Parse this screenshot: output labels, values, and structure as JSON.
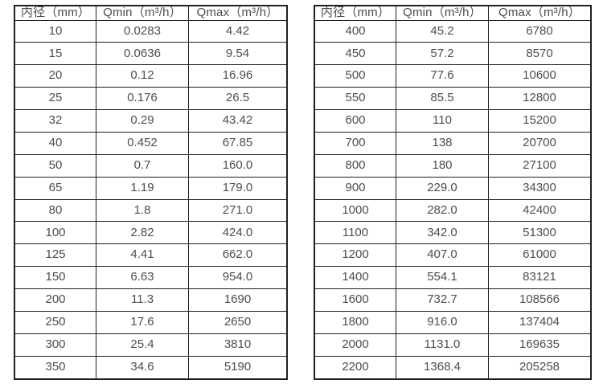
{
  "page": {
    "background_color": "#ffffff",
    "border_color": "#1f1f1f",
    "text_color": "#4d4d4d"
  },
  "chart_data": [
    {
      "type": "table",
      "columns": [
        "内径（mm）",
        "Qmin（m³/h）",
        "Qmax（m³/h）"
      ],
      "rows": [
        [
          "10",
          "0.0283",
          "4.42"
        ],
        [
          "15",
          "0.0636",
          "9.54"
        ],
        [
          "20",
          "0.12",
          "16.96"
        ],
        [
          "25",
          "0.176",
          "26.5"
        ],
        [
          "32",
          "0.29",
          "43.42"
        ],
        [
          "40",
          "0.452",
          "67.85"
        ],
        [
          "50",
          "0.7",
          "160.0"
        ],
        [
          "65",
          "1.19",
          "179.0"
        ],
        [
          "80",
          "1.8",
          "271.0"
        ],
        [
          "100",
          "2.82",
          "424.0"
        ],
        [
          "125",
          "4.41",
          "662.0"
        ],
        [
          "150",
          "6.63",
          "954.0"
        ],
        [
          "200",
          "11.3",
          "1690"
        ],
        [
          "250",
          "17.6",
          "2650"
        ],
        [
          "300",
          "25.4",
          "3810"
        ],
        [
          "350",
          "34.6",
          "5190"
        ]
      ]
    },
    {
      "type": "table",
      "columns": [
        "内径（mm）",
        "Qmin（m³/h）",
        "Qmax（m³/h）"
      ],
      "rows": [
        [
          "400",
          "45.2",
          "6780"
        ],
        [
          "450",
          "57.2",
          "8570"
        ],
        [
          "500",
          "77.6",
          "10600"
        ],
        [
          "550",
          "85.5",
          "12800"
        ],
        [
          "600",
          "110",
          "15200"
        ],
        [
          "700",
          "138",
          "20700"
        ],
        [
          "800",
          "180",
          "27100"
        ],
        [
          "900",
          "229.0",
          "34300"
        ],
        [
          "1000",
          "282.0",
          "42400"
        ],
        [
          "1100",
          "342.0",
          "51300"
        ],
        [
          "1200",
          "407.0",
          "61000"
        ],
        [
          "1400",
          "554.1",
          "83121"
        ],
        [
          "1600",
          "732.7",
          "108566"
        ],
        [
          "1800",
          "916.0",
          "137404"
        ],
        [
          "2000",
          "1131.0",
          "169635"
        ],
        [
          "2200",
          "1368.4",
          "205258"
        ]
      ]
    }
  ]
}
